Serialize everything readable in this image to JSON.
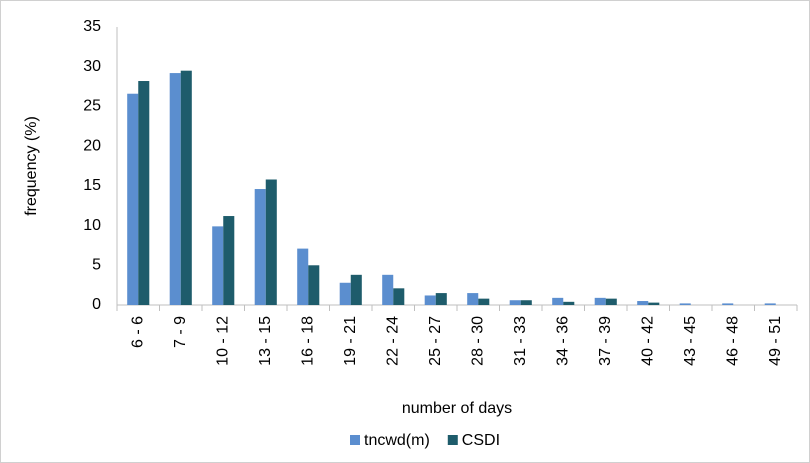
{
  "chart_data": {
    "type": "bar",
    "x_label": "number of days",
    "y_label": "frequency (%)",
    "categories": [
      "6 - 6",
      "7 - 9",
      "10 - 12",
      "13 - 15",
      "16 - 18",
      "19 - 21",
      "22 - 24",
      "25 - 27",
      "28 - 30",
      "31 - 33",
      "34 - 36",
      "37 - 39",
      "40 - 42",
      "43 - 45",
      "46 - 48",
      "49 - 51"
    ],
    "series": [
      {
        "name": "tncwd(m)",
        "color": "#5b8ecf",
        "values": [
          26.6,
          29.2,
          9.9,
          14.6,
          7.1,
          2.8,
          3.8,
          1.2,
          1.5,
          0.6,
          0.9,
          0.9,
          0.5,
          0.2,
          0.2,
          0.2
        ]
      },
      {
        "name": "CSDI",
        "color": "#1e5c6b",
        "values": [
          28.2,
          29.5,
          11.2,
          15.8,
          5.0,
          3.8,
          2.1,
          1.5,
          0.8,
          0.6,
          0.4,
          0.8,
          0.3,
          0,
          0,
          0
        ]
      }
    ],
    "ylim": [
      0,
      35
    ],
    "yticks": [
      0,
      5,
      10,
      15,
      20,
      25,
      30,
      35
    ],
    "grid": false,
    "legend": "bottom"
  }
}
